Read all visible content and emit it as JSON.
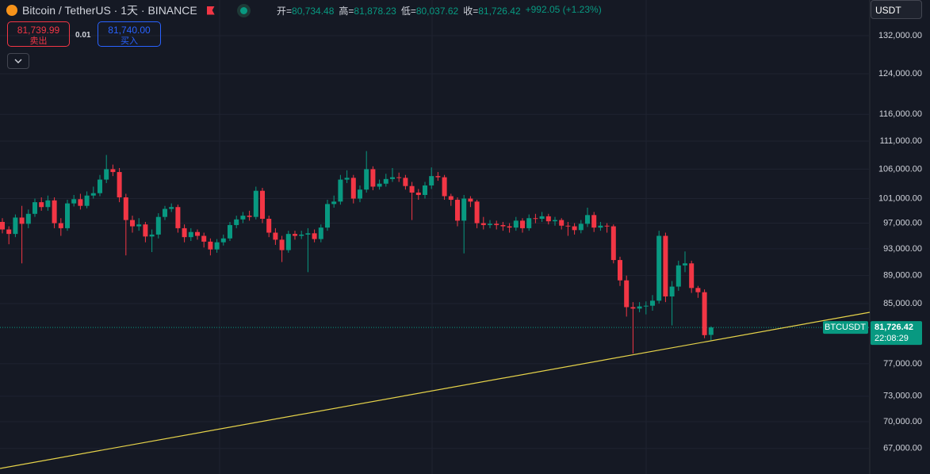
{
  "header": {
    "title": "Bitcoin / TetherUS · 1天 · BINANCE",
    "open_key": "开=",
    "open": "80,734.48",
    "high_key": "高=",
    "high": "81,878.23",
    "low_key": "低=",
    "low": "80,037.62",
    "close_key": "收=",
    "close": "81,726.42",
    "change": "+992.05 (+1.23%)"
  },
  "trade": {
    "sell_price": "81,739.99",
    "sell_label": "卖出",
    "spread": "0.01",
    "buy_price": "81,740.00",
    "buy_label": "买入"
  },
  "currency": "USDT",
  "chart_data": {
    "type": "candlestick",
    "log_scale": true,
    "grid": true,
    "up_color": "#089981",
    "down_color": "#f23645",
    "ylim": [
      64240,
      139960
    ],
    "yticks": [
      {
        "value": 132000,
        "label": "132,000.00"
      },
      {
        "value": 124000,
        "label": "124,000.00"
      },
      {
        "value": 116000,
        "label": "116,000.00"
      },
      {
        "value": 111000,
        "label": "111,000.00"
      },
      {
        "value": 106000,
        "label": "106,000.00"
      },
      {
        "value": 101000,
        "label": "101,000.00"
      },
      {
        "value": 97000,
        "label": "97,000.00"
      },
      {
        "value": 93000,
        "label": "93,000.00"
      },
      {
        "value": 89000,
        "label": "89,000.00"
      },
      {
        "value": 85000,
        "label": "85,000.00"
      },
      {
        "value": 77000,
        "label": "77,000.00"
      },
      {
        "value": 73000,
        "label": "73,000.00"
      },
      {
        "value": 70000,
        "label": "70,000.00"
      },
      {
        "value": 67000,
        "label": "67,000.00"
      }
    ],
    "open": [
      97200,
      96000,
      95300,
      97900,
      96900,
      98500,
      100400,
      99600,
      100700,
      97000,
      96200,
      100200,
      100900,
      99800,
      101500,
      101900,
      104200,
      106000,
      105500,
      101200,
      97500,
      96500,
      96800,
      94900,
      95200,
      98000,
      99300,
      99600,
      96200,
      94800,
      95600,
      95000,
      94100,
      92900,
      94000,
      94600,
      96700,
      97600,
      98200,
      98000,
      102300,
      97700,
      95500,
      94400,
      92800,
      95300,
      95000,
      95200,
      95400,
      94500,
      96300,
      100100,
      100500,
      104200,
      104500,
      101000,
      102500,
      106000,
      103000,
      103500,
      104300,
      104600,
      104500,
      103100,
      102000,
      101600,
      103200,
      104800,
      104600,
      101400,
      100800,
      97400,
      101000,
      100500,
      97000,
      96700,
      96900,
      96700,
      96500,
      96300,
      97400,
      96200,
      97800,
      97700,
      98100,
      97300,
      97500,
      96600,
      96500,
      95900,
      96900,
      98300,
      96300,
      96600,
      96500,
      91300,
      88300,
      84500,
      84300,
      84600,
      84700,
      85400,
      95000,
      86000,
      87400,
      90500,
      90800,
      87200,
      86600,
      80734.48
    ],
    "high": [
      97800,
      96500,
      98400,
      99800,
      99200,
      101000,
      101200,
      101500,
      101200,
      97800,
      100800,
      101600,
      101800,
      102200,
      103000,
      105000,
      108500,
      106800,
      106200,
      101800,
      98200,
      97800,
      97200,
      96000,
      98600,
      99800,
      100200,
      100000,
      96800,
      96200,
      96000,
      95500,
      94600,
      94500,
      95200,
      97200,
      98200,
      98800,
      99000,
      103000,
      102800,
      98200,
      96200,
      95000,
      95800,
      95800,
      95800,
      96200,
      96000,
      96800,
      100800,
      101500,
      105000,
      105800,
      105000,
      103200,
      109200,
      106500,
      104200,
      105200,
      106200,
      105400,
      105000,
      103800,
      102600,
      103800,
      106300,
      105500,
      105000,
      101800,
      101200,
      101600,
      101400,
      100800,
      98000,
      97500,
      97400,
      97200,
      97000,
      98000,
      97800,
      98400,
      98500,
      98800,
      98500,
      98000,
      97800,
      97200,
      97000,
      97500,
      99500,
      98800,
      97200,
      97000,
      96800,
      91800,
      89000,
      85200,
      85200,
      85300,
      86200,
      95800,
      95500,
      88200,
      91200,
      92600,
      91200,
      87500,
      87000,
      81878.23
    ],
    "low": [
      95400,
      93700,
      94800,
      90800,
      96200,
      98000,
      99000,
      99000,
      96200,
      95000,
      95800,
      99700,
      99200,
      99400,
      101000,
      101400,
      103600,
      104800,
      100400,
      92000,
      95500,
      95800,
      94000,
      92500,
      94600,
      97500,
      98800,
      95500,
      94000,
      94200,
      94400,
      93200,
      92000,
      92400,
      93500,
      94200,
      96200,
      97000,
      97400,
      97600,
      97000,
      94800,
      93600,
      91000,
      92400,
      94400,
      94500,
      89500,
      94000,
      94000,
      95800,
      99500,
      100000,
      103600,
      100200,
      100400,
      102000,
      102400,
      102500,
      103000,
      103800,
      103800,
      102500,
      97500,
      100800,
      101000,
      102600,
      104000,
      100800,
      99800,
      96500,
      92300,
      99600,
      96200,
      96000,
      96200,
      96000,
      95800,
      95500,
      95800,
      95500,
      95800,
      97000,
      97200,
      96800,
      96600,
      96000,
      95000,
      95200,
      95400,
      96400,
      95600,
      95800,
      95500,
      90800,
      87500,
      83200,
      78300,
      83800,
      83500,
      84000,
      85000,
      85200,
      82000,
      86800,
      89500,
      86500,
      85800,
      80300,
      80037.62
    ],
    "close": [
      96000,
      95300,
      97900,
      96900,
      98500,
      100400,
      99600,
      100700,
      97000,
      96200,
      100200,
      100900,
      99800,
      101500,
      101900,
      104200,
      106000,
      105500,
      101200,
      97500,
      96500,
      96800,
      94900,
      95200,
      98000,
      99300,
      99600,
      96200,
      94800,
      95600,
      95000,
      94100,
      92900,
      94000,
      94600,
      96700,
      97600,
      98200,
      98000,
      102300,
      97700,
      95500,
      94400,
      92800,
      95300,
      95000,
      95200,
      95400,
      94500,
      96300,
      100100,
      100500,
      104200,
      104500,
      101000,
      102500,
      106000,
      103000,
      103500,
      104300,
      104600,
      104500,
      103100,
      102000,
      101600,
      103200,
      104800,
      104600,
      101400,
      100800,
      97400,
      101000,
      100500,
      97000,
      96700,
      96900,
      96700,
      96500,
      96300,
      97400,
      96200,
      97800,
      97700,
      98100,
      97300,
      97500,
      96600,
      96500,
      95900,
      96900,
      98300,
      96300,
      96600,
      96500,
      91300,
      88300,
      84500,
      84300,
      84600,
      84700,
      85400,
      95000,
      86000,
      87400,
      90500,
      90800,
      87200,
      86600,
      80700,
      81726.42
    ],
    "price_tag": {
      "symbol": "BTCUSDT",
      "price": "81,726.42",
      "countdown": "22:08:29"
    }
  }
}
